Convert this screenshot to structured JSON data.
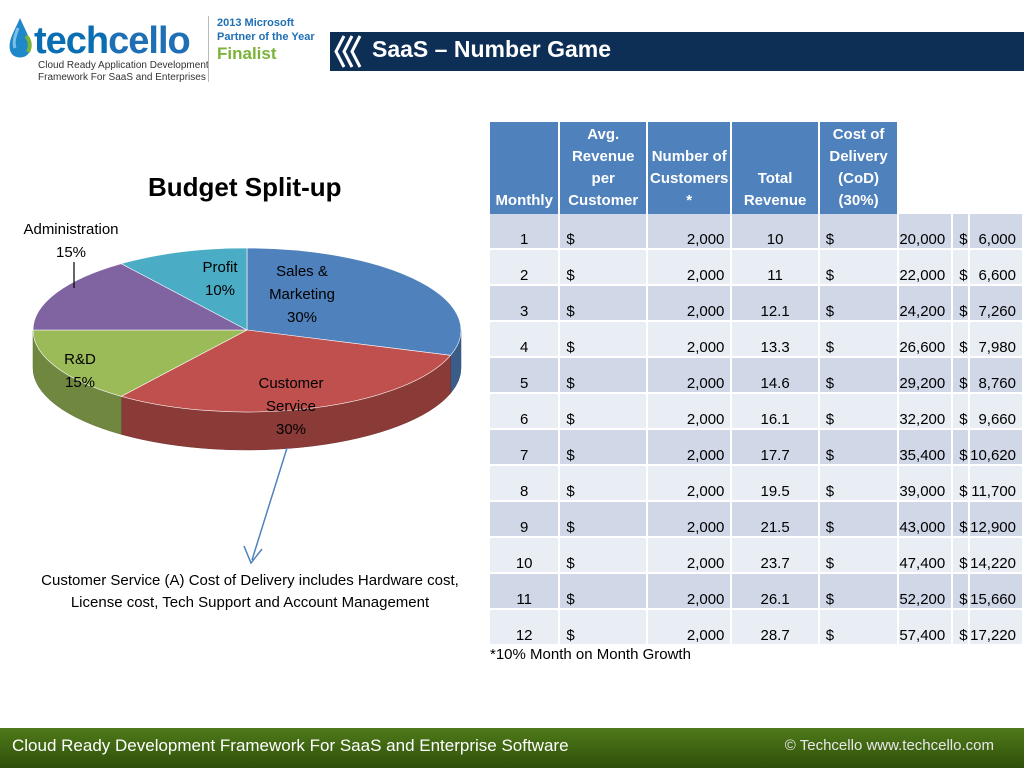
{
  "header": {
    "logo_word_a": "tech",
    "logo_word_b": "cello",
    "logo_tagline_1": "Cloud Ready Application Development",
    "logo_tagline_2": "Framework For SaaS and Enterprises",
    "award_line_1": "2013 Microsoft",
    "award_line_2": "Partner of the Year",
    "award_line_3": "Finalist",
    "slide_title": "SaaS – Number Game"
  },
  "chart_data": {
    "type": "pie",
    "title": "Budget Split-up",
    "slices": [
      {
        "label_lines": [
          "Sales &",
          "Marketing"
        ],
        "value": 30,
        "pct_text": "30%",
        "color": "#4f81bd"
      },
      {
        "label_lines": [
          "Customer",
          "Service"
        ],
        "value": 30,
        "pct_text": "30%",
        "color": "#c0504d"
      },
      {
        "label_lines": [
          "R&D"
        ],
        "value": 15,
        "pct_text": "15%",
        "color": "#9bbb59"
      },
      {
        "label_lines": [
          "Administration"
        ],
        "value": 15,
        "pct_text": "15%",
        "color": "#8064a2"
      },
      {
        "label_lines": [
          "Profit"
        ],
        "value": 10,
        "pct_text": "10%",
        "color": "#4bacc6"
      }
    ],
    "note": "Customer Service (A) Cost of Delivery includes Hardware cost, License cost,  Tech Support and Account Management"
  },
  "table": {
    "headers": [
      "Monthly",
      "Avg. Revenue per Customer",
      "Number of Customers *",
      "Total Revenue",
      "Cost of Delivery (CoD) (30%)"
    ],
    "rows": [
      [
        "1",
        "$",
        "2,000",
        "10",
        "$",
        "20,000",
        "$",
        "6,000"
      ],
      [
        "2",
        "$",
        "2,000",
        "11",
        "$",
        "22,000",
        "$",
        "6,600"
      ],
      [
        "3",
        "$",
        "2,000",
        "12.1",
        "$",
        "24,200",
        "$",
        "7,260"
      ],
      [
        "4",
        "$",
        "2,000",
        "13.3",
        "$",
        "26,600",
        "$",
        "7,980"
      ],
      [
        "5",
        "$",
        "2,000",
        "14.6",
        "$",
        "29,200",
        "$",
        "8,760"
      ],
      [
        "6",
        "$",
        "2,000",
        "16.1",
        "$",
        "32,200",
        "$",
        "9,660"
      ],
      [
        "7",
        "$",
        "2,000",
        "17.7",
        "$",
        "35,400",
        "$",
        "10,620"
      ],
      [
        "8",
        "$",
        "2,000",
        "19.5",
        "$",
        "39,000",
        "$",
        "11,700"
      ],
      [
        "9",
        "$",
        "2,000",
        "21.5",
        "$",
        "43,000",
        "$",
        "12,900"
      ],
      [
        "10",
        "$",
        "2,000",
        "23.7",
        "$",
        "47,400",
        "$",
        "14,220"
      ],
      [
        "11",
        "$",
        "2,000",
        "26.1",
        "$",
        "52,200",
        "$",
        "15,660"
      ],
      [
        "12",
        "$",
        "2,000",
        "28.7",
        "$",
        "57,400",
        "$",
        "17,220"
      ]
    ],
    "footnote": "*10% Month on Month Growth"
  },
  "footer": {
    "text": "Cloud Ready Development Framework For SaaS and Enterprise Software",
    "copyright": "© Techcello www.techcello.com"
  }
}
